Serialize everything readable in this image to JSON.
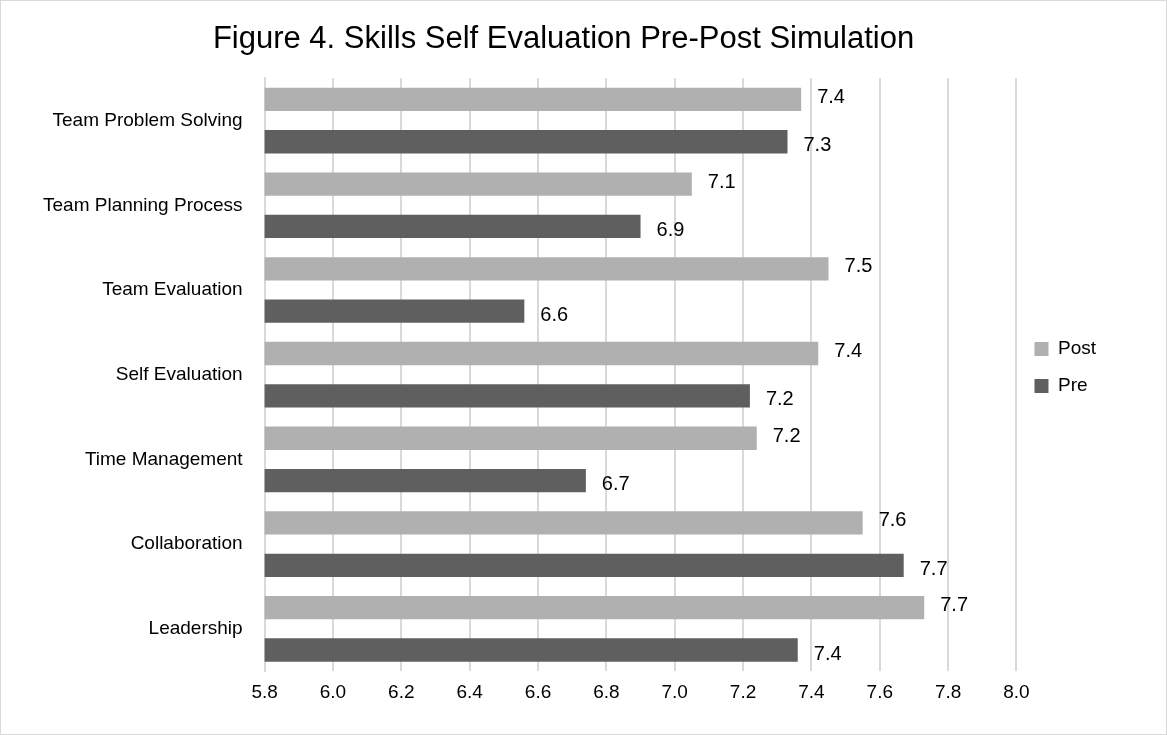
{
  "chart_data": {
    "type": "bar",
    "orientation": "horizontal",
    "title": "Figure 4. Skills Self Evaluation Pre-Post Simulation",
    "categories": [
      "Team Problem Solving",
      "Team Planning Process",
      "Team Evaluation",
      "Self Evaluation",
      "Time Management",
      "Collaboration",
      "Leadership"
    ],
    "series": [
      {
        "name": "Post",
        "color": "#b0b0b0",
        "values": [
          7.37,
          7.05,
          7.45,
          7.42,
          7.24,
          7.55,
          7.73
        ],
        "value_labels": [
          "7.4",
          "7.1",
          "7.5",
          "7.4",
          "7.2",
          "7.6",
          "7.7"
        ]
      },
      {
        "name": "Pre",
        "color": "#5f5f5f",
        "values": [
          7.33,
          6.9,
          6.56,
          7.22,
          6.74,
          7.67,
          7.36
        ],
        "value_labels": [
          "7.3",
          "6.9",
          "6.6",
          "7.2",
          "6.7",
          "7.7",
          "7.4"
        ]
      }
    ],
    "xlim": [
      5.8,
      8.0
    ],
    "xticks": [
      {
        "value": 5.8,
        "label": "5.8"
      },
      {
        "value": 6.0,
        "label": "6.0"
      },
      {
        "value": 6.2,
        "label": "6.2"
      },
      {
        "value": 6.4,
        "label": "6.4"
      },
      {
        "value": 6.6,
        "label": "6.6"
      },
      {
        "value": 6.8,
        "label": "6.8"
      },
      {
        "value": 7.0,
        "label": "7.0"
      },
      {
        "value": 7.2,
        "label": "7.2"
      },
      {
        "value": 7.4,
        "label": "7.4"
      },
      {
        "value": 7.6,
        "label": "7.6"
      },
      {
        "value": 7.8,
        "label": "7.8"
      },
      {
        "value": 8.0,
        "label": "8.0"
      }
    ],
    "grid": "x",
    "legend": "right"
  }
}
